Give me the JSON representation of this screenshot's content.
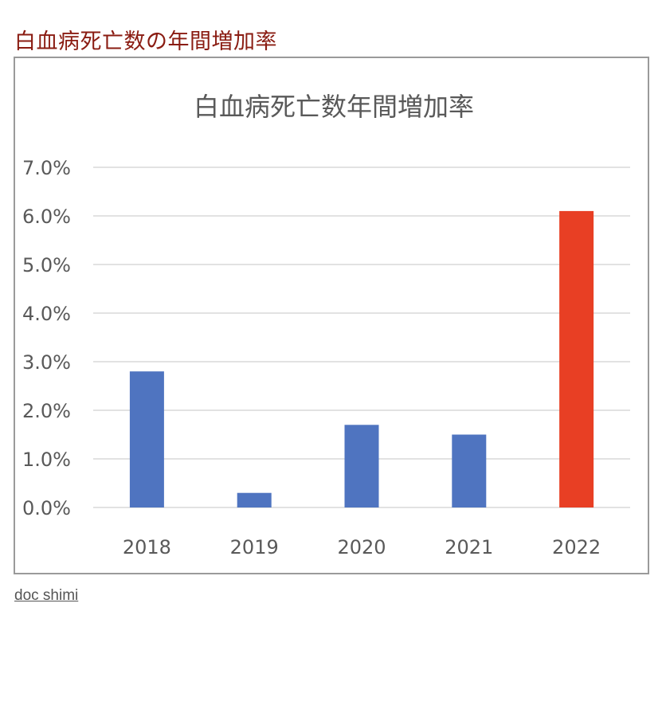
{
  "page": {
    "heading": "白血病死亡数の年間増加率",
    "credit": "doc shimi"
  },
  "colors": {
    "heading": "#8a1c12",
    "bar_default": "#4f74c0",
    "bar_highlight": "#e83f24",
    "grid": "#d9d9d9",
    "axis_text": "#595959"
  },
  "chart_data": {
    "type": "bar",
    "title": "白血病死亡数年間増加率",
    "categories": [
      "2018",
      "2019",
      "2020",
      "2021",
      "2022"
    ],
    "values": [
      2.8,
      0.3,
      1.7,
      1.5,
      6.1
    ],
    "highlight_index": 4,
    "ylim": [
      0,
      7
    ],
    "yticks": [
      0,
      1,
      2,
      3,
      4,
      5,
      6,
      7
    ],
    "ytick_format": "percent_1dp",
    "xlabel": "",
    "ylabel": "",
    "grid": true,
    "legend": false
  }
}
